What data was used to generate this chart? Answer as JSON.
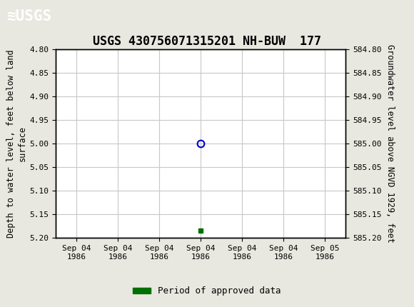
{
  "title": "USGS 430756071315201 NH-BUW  177",
  "left_ylabel": "Depth to water level, feet below land\nsurface",
  "right_ylabel": "Groundwater level above NGVD 1929, feet",
  "ylim_left": [
    4.8,
    5.2
  ],
  "ylim_right": [
    584.8,
    585.2
  ],
  "y_ticks_left": [
    4.8,
    4.85,
    4.9,
    4.95,
    5.0,
    5.05,
    5.1,
    5.15,
    5.2
  ],
  "y_ticks_right": [
    584.8,
    584.85,
    584.9,
    584.95,
    585.0,
    585.05,
    585.1,
    585.15,
    585.2
  ],
  "data_point_x": 3,
  "data_point_y": 5.0,
  "green_marker_x": 3,
  "green_marker_y": 5.185,
  "header_color": "#006b3c",
  "grid_color": "#c8c8c8",
  "background_color": "#e8e8e0",
  "plot_bg_color": "#ffffff",
  "data_point_color": "#0000cc",
  "green_marker_color": "#007000",
  "legend_label": "Period of approved data",
  "x_ticks": [
    0,
    1,
    2,
    3,
    4,
    5,
    6
  ],
  "x_tick_labels": [
    "Sep 04\n1986",
    "Sep 04\n1986",
    "Sep 04\n1986",
    "Sep 04\n1986",
    "Sep 04\n1986",
    "Sep 04\n1986",
    "Sep 05\n1986"
  ],
  "font_family": "monospace",
  "title_fontsize": 12,
  "axis_label_fontsize": 8.5,
  "tick_fontsize": 8
}
